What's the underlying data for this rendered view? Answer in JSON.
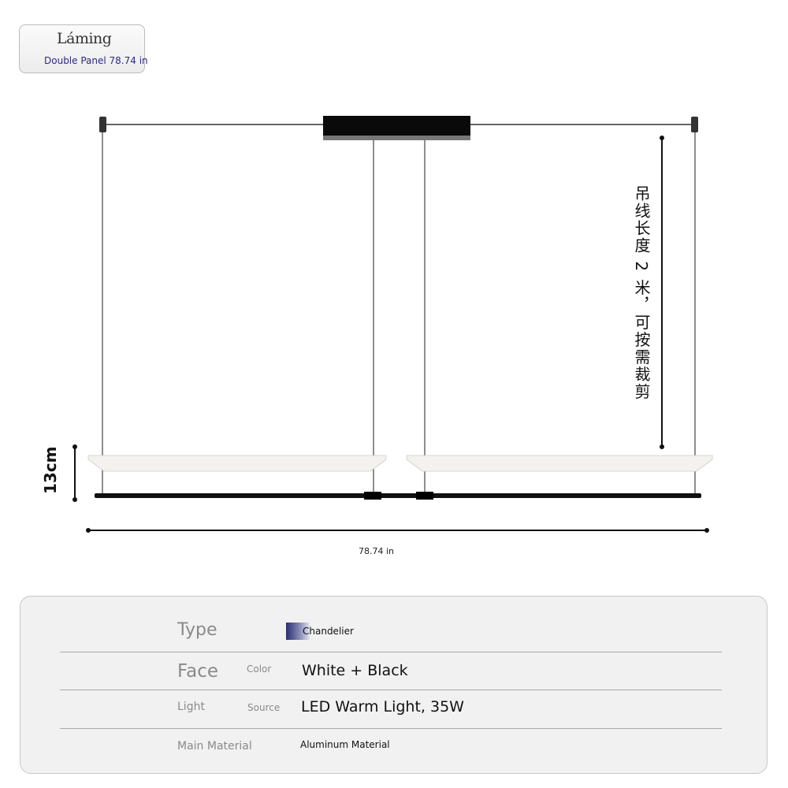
{
  "badge": {
    "brand": "Láming",
    "subtitle": "Double Panel 78.74 in"
  },
  "dimensions": {
    "cable_note": "吊线长度 2 米，可按需裁剪",
    "height": "13cm",
    "width": "78.74 in"
  },
  "specs": [
    {
      "label": "Type",
      "sublabel": "",
      "value": "Chandelier",
      "icon": "chandelier-thumbnail-icon"
    },
    {
      "label": "Face",
      "sublabel": "Color",
      "value": "White + Black"
    },
    {
      "label": "Light",
      "sublabel": "Source",
      "value": "LED Warm Light, 35W"
    },
    {
      "label": "Main Material",
      "sublabel": "",
      "value": "Aluminum Material"
    }
  ],
  "colors": {
    "frame": "#111111",
    "panel": "#f4f2ef",
    "subtitle": "#2e2a80"
  }
}
